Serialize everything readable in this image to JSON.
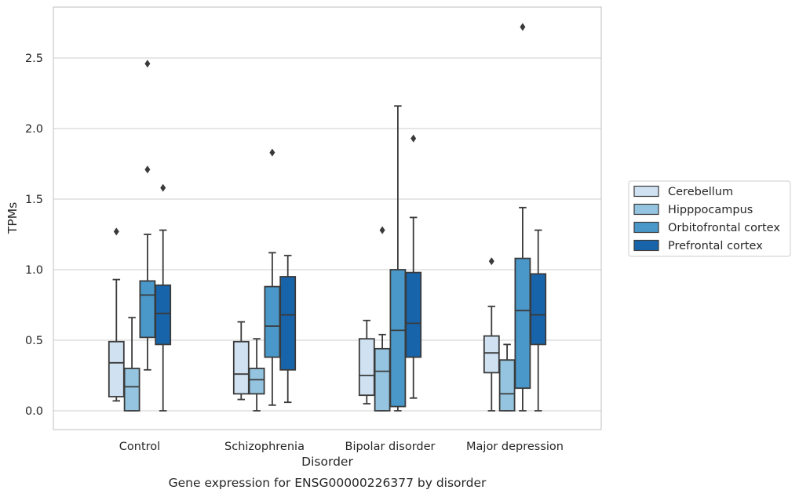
{
  "chart_data": {
    "type": "boxplot",
    "caption": "Gene expression for ENSG00000226377 by disorder",
    "xlabel": "Disorder",
    "ylabel": "TPMs",
    "ylim": [
      -0.13,
      2.87
    ],
    "yticks": [
      0.0,
      0.5,
      1.0,
      1.5,
      2.0,
      2.5
    ],
    "ytick_labels": [
      "0.0",
      "0.5",
      "1.0",
      "1.5",
      "2.0",
      "2.5"
    ],
    "categories": [
      "Control",
      "Schizophrenia",
      "Bipolar disorder",
      "Major depression"
    ],
    "grid": "horizontal",
    "legend_position": "right",
    "series": [
      {
        "name": "Cerebellum",
        "color": "#d0e1f2",
        "boxes": [
          {
            "whislo": 0.07,
            "q1": 0.1,
            "median": 0.34,
            "q3": 0.49,
            "whishi": 0.93,
            "fliers": [
              1.27
            ]
          },
          {
            "whislo": 0.08,
            "q1": 0.12,
            "median": 0.26,
            "q3": 0.49,
            "whishi": 0.63,
            "fliers": []
          },
          {
            "whislo": 0.05,
            "q1": 0.11,
            "median": 0.25,
            "q3": 0.51,
            "whishi": 0.64,
            "fliers": []
          },
          {
            "whislo": 0.0,
            "q1": 0.27,
            "median": 0.41,
            "q3": 0.53,
            "whishi": 0.74,
            "fliers": [
              1.06
            ]
          }
        ]
      },
      {
        "name": "Hipppocampus",
        "color": "#94c4df",
        "boxes": [
          {
            "whislo": 0.0,
            "q1": 0.0,
            "median": 0.17,
            "q3": 0.3,
            "whishi": 0.66,
            "fliers": []
          },
          {
            "whislo": 0.0,
            "q1": 0.12,
            "median": 0.22,
            "q3": 0.3,
            "whishi": 0.51,
            "fliers": []
          },
          {
            "whislo": 0.0,
            "q1": 0.0,
            "median": 0.28,
            "q3": 0.44,
            "whishi": 0.54,
            "fliers": [
              1.28
            ]
          },
          {
            "whislo": 0.0,
            "q1": 0.0,
            "median": 0.12,
            "q3": 0.36,
            "whishi": 0.47,
            "fliers": []
          }
        ]
      },
      {
        "name": "Orbitofrontal cortex",
        "color": "#4a98c9",
        "boxes": [
          {
            "whislo": 0.29,
            "q1": 0.52,
            "median": 0.82,
            "q3": 0.92,
            "whishi": 1.25,
            "fliers": [
              1.71,
              2.46
            ]
          },
          {
            "whislo": 0.04,
            "q1": 0.38,
            "median": 0.6,
            "q3": 0.88,
            "whishi": 1.12,
            "fliers": [
              1.83
            ]
          },
          {
            "whislo": 0.0,
            "q1": 0.03,
            "median": 0.57,
            "q3": 1.0,
            "whishi": 2.16,
            "fliers": []
          },
          {
            "whislo": 0.0,
            "q1": 0.16,
            "median": 0.71,
            "q3": 1.08,
            "whishi": 1.44,
            "fliers": [
              2.72
            ]
          }
        ]
      },
      {
        "name": "Prefrontal cortex",
        "color": "#1764ab",
        "boxes": [
          {
            "whislo": 0.0,
            "q1": 0.47,
            "median": 0.69,
            "q3": 0.89,
            "whishi": 1.28,
            "fliers": [
              1.58
            ]
          },
          {
            "whislo": 0.06,
            "q1": 0.29,
            "median": 0.68,
            "q3": 0.95,
            "whishi": 1.1,
            "fliers": []
          },
          {
            "whislo": 0.09,
            "q1": 0.38,
            "median": 0.62,
            "q3": 0.98,
            "whishi": 1.37,
            "fliers": [
              1.93
            ]
          },
          {
            "whislo": 0.0,
            "q1": 0.47,
            "median": 0.68,
            "q3": 0.97,
            "whishi": 1.28,
            "fliers": []
          }
        ]
      }
    ]
  }
}
